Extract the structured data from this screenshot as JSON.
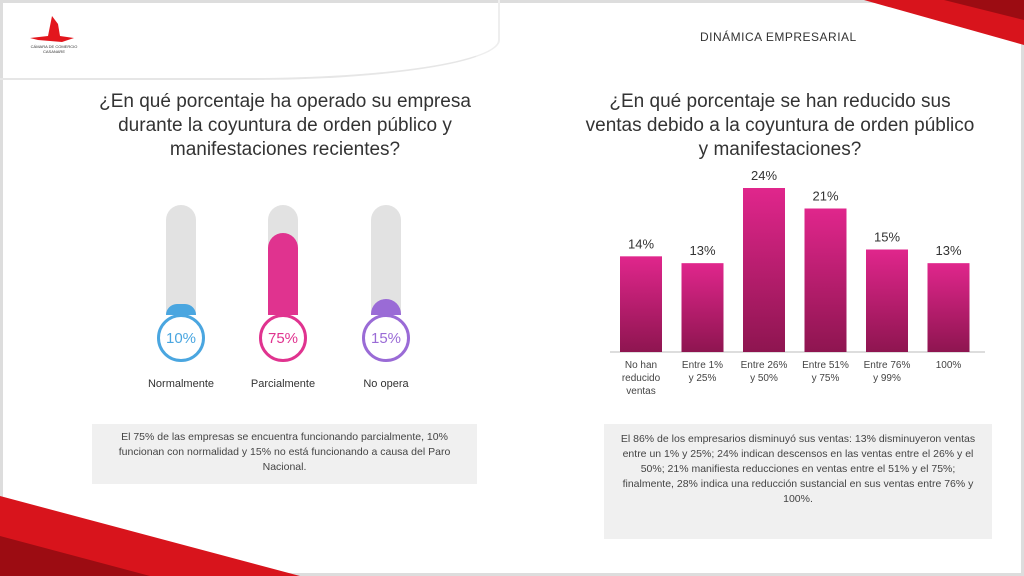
{
  "header": {
    "section_title": "DINÁMICA EMPRESARIAL",
    "logo_text": "CÁMARA DE COMERCIO CASANARE"
  },
  "left": {
    "question": "¿En qué porcentaje ha operado su empresa durante la coyuntura de orden público y manifestaciones recientes?",
    "items": [
      {
        "label": "Normalmente",
        "value": "10%",
        "percent": 10,
        "color": "#4aa6e0"
      },
      {
        "label": "Parcialmente",
        "value": "75%",
        "percent": 75,
        "color": "#e0338f"
      },
      {
        "label": "No opera",
        "value": "15%",
        "percent": 15,
        "color": "#9a6bd6"
      }
    ],
    "note": "El 75% de las empresas se encuentra funcionando parcialmente, 10% funcionan con normalidad y  15% no está funcionando a causa del Paro Nacional."
  },
  "right": {
    "note": "El 86% de los empresarios disminuyó sus ventas: 13% disminuyeron ventas entre un 1% y 25%; 24% indican descensos en las ventas entre el 26% y el 50%; 21% manifiesta reducciones en ventas entre el 51% y el 75%; finalmente, 28% indica una reducción sustancial en sus ventas entre 76% y 100%."
  },
  "chart_data": {
    "type": "bar",
    "title": "¿En qué porcentaje se han reducido sus ventas debido a la coyuntura de orden público y manifestaciones?",
    "categories": [
      "No han reducido ventas",
      "Entre 1% y 25%",
      "Entre 26% y 50%",
      "Entre 51% y 75%",
      "Entre 76% y 99%",
      "100%"
    ],
    "values": [
      14,
      13,
      24,
      21,
      15,
      13
    ],
    "labels": [
      "14%",
      "13%",
      "24%",
      "21%",
      "15%",
      "13%"
    ],
    "ylim": [
      0,
      25
    ],
    "bar_color": "#e0268c"
  }
}
